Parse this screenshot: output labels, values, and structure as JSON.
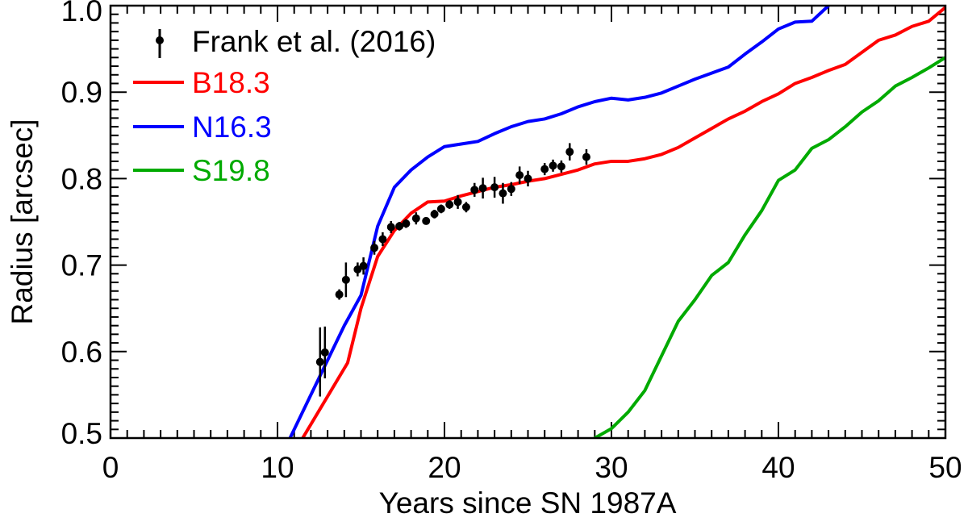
{
  "chart_data": {
    "type": "line",
    "title": "",
    "xlabel": "Years since SN 1987A",
    "ylabel": "Radius [arcsec]",
    "xlim": [
      0,
      50
    ],
    "ylim": [
      0.5,
      1.0
    ],
    "xticks": [
      "0",
      "10",
      "20",
      "30",
      "40",
      "50"
    ],
    "yticks": [
      "0.5",
      "0.6",
      "0.7",
      "0.8",
      "0.9",
      "1.0"
    ],
    "grid": false,
    "legend_position": "top-left",
    "observations": {
      "name": "Frank et al. (2016)",
      "color": "#000000",
      "x": [
        12.55,
        12.84,
        13.7,
        14.1,
        14.8,
        15.15,
        15.8,
        16.3,
        16.8,
        17.3,
        17.7,
        18.3,
        18.9,
        19.4,
        19.8,
        20.3,
        20.8,
        21.3,
        21.8,
        22.3,
        23.0,
        23.5,
        24.0,
        24.5,
        25.0,
        26.0,
        26.5,
        27.0,
        27.5,
        28.5
      ],
      "y": [
        0.588,
        0.599,
        0.666,
        0.683,
        0.695,
        0.699,
        0.72,
        0.73,
        0.744,
        0.745,
        0.748,
        0.754,
        0.751,
        0.759,
        0.765,
        0.77,
        0.773,
        0.767,
        0.787,
        0.789,
        0.79,
        0.783,
        0.788,
        0.804,
        0.8,
        0.811,
        0.815,
        0.814,
        0.831,
        0.825
      ],
      "yerr": [
        0.04,
        0.03,
        0.006,
        0.02,
        0.008,
        0.01,
        0.008,
        0.008,
        0.007,
        0.005,
        0.005,
        0.007,
        0.004,
        0.005,
        0.005,
        0.005,
        0.008,
        0.006,
        0.008,
        0.012,
        0.012,
        0.012,
        0.008,
        0.01,
        0.009,
        0.007,
        0.007,
        0.007,
        0.01,
        0.009
      ]
    },
    "series": [
      {
        "name": "B18.3",
        "color": "#ff0000",
        "x": [
          11.2,
          14.2,
          15,
          16,
          17,
          18,
          19,
          20,
          21,
          22,
          23,
          24,
          25,
          26,
          27,
          28,
          29,
          30,
          31,
          32,
          33,
          34,
          35,
          36,
          37,
          38,
          39,
          40,
          41,
          42,
          43,
          44,
          45,
          46,
          47,
          48,
          49,
          50
        ],
        "y": [
          0.49,
          0.587,
          0.65,
          0.71,
          0.74,
          0.76,
          0.773,
          0.774,
          0.78,
          0.785,
          0.79,
          0.793,
          0.797,
          0.8,
          0.805,
          0.81,
          0.817,
          0.82,
          0.82,
          0.823,
          0.828,
          0.836,
          0.847,
          0.858,
          0.869,
          0.878,
          0.889,
          0.898,
          0.91,
          0.917,
          0.925,
          0.932,
          0.946,
          0.96,
          0.966,
          0.976,
          0.982,
          0.998
        ]
      },
      {
        "name": "N16.3",
        "color": "#0000ff",
        "x": [
          10.5,
          12,
          13,
          14,
          15,
          16,
          17,
          18,
          19,
          20,
          21,
          22,
          23,
          24,
          25,
          26,
          27,
          28,
          29,
          30,
          31,
          32,
          33,
          34,
          35,
          36,
          37,
          38,
          39,
          40,
          41,
          42,
          43,
          43.5
        ],
        "y": [
          0.49,
          0.55,
          0.59,
          0.63,
          0.665,
          0.745,
          0.79,
          0.81,
          0.825,
          0.837,
          0.84,
          0.843,
          0.852,
          0.86,
          0.866,
          0.869,
          0.875,
          0.883,
          0.889,
          0.893,
          0.891,
          0.894,
          0.899,
          0.907,
          0.915,
          0.922,
          0.929,
          0.944,
          0.958,
          0.973,
          0.981,
          0.982,
          1.0,
          1.01
        ]
      },
      {
        "name": "S19.8",
        "color": "#00aa00",
        "x": [
          28.8,
          29,
          30,
          31,
          32,
          33,
          34,
          35,
          36,
          37,
          38,
          39,
          40,
          41,
          42,
          43,
          44,
          45,
          46,
          47,
          48,
          49,
          50
        ],
        "y": [
          0.49,
          0.5,
          0.511,
          0.53,
          0.555,
          0.595,
          0.635,
          0.66,
          0.688,
          0.703,
          0.735,
          0.763,
          0.798,
          0.81,
          0.835,
          0.845,
          0.86,
          0.877,
          0.89,
          0.907,
          0.917,
          0.928,
          0.94
        ]
      }
    ]
  }
}
